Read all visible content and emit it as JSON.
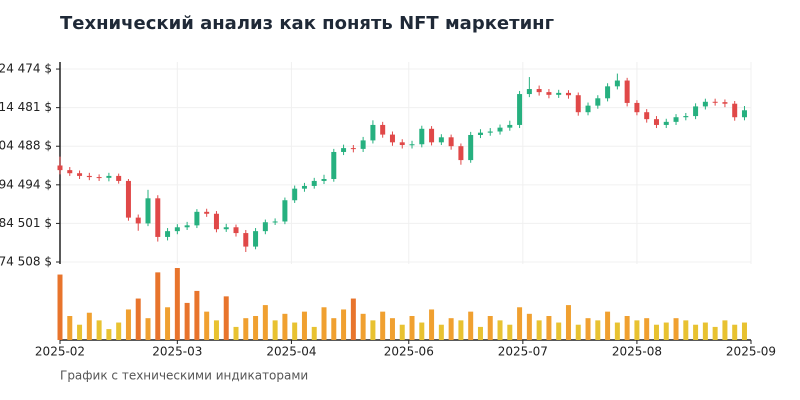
{
  "chart_data": {
    "type": "candlestick",
    "title": "Технический анализ как понять NFT маркетинг",
    "subtitle": "График с техническими индикаторами",
    "up_color": "#26b07f",
    "down_color": "#e04848",
    "grid": true,
    "x": [
      "2025-02-01",
      "2025-02-04",
      "2025-02-07",
      "2025-02-10",
      "2025-02-13",
      "2025-02-16",
      "2025-02-19",
      "2025-02-22",
      "2025-02-25",
      "2025-02-28",
      "2025-03-03",
      "2025-03-06",
      "2025-03-09",
      "2025-03-12",
      "2025-03-15",
      "2025-03-18",
      "2025-03-21",
      "2025-03-24",
      "2025-03-27",
      "2025-03-30",
      "2025-04-02",
      "2025-04-05",
      "2025-04-08",
      "2025-04-11",
      "2025-04-14",
      "2025-04-17",
      "2025-04-20",
      "2025-04-23",
      "2025-04-26",
      "2025-04-29",
      "2025-05-02",
      "2025-05-05",
      "2025-05-08",
      "2025-05-11",
      "2025-05-14",
      "2025-05-17",
      "2025-05-20",
      "2025-05-23",
      "2025-05-26",
      "2025-05-29",
      "2025-06-01",
      "2025-06-04",
      "2025-06-07",
      "2025-06-10",
      "2025-06-13",
      "2025-06-16",
      "2025-06-19",
      "2025-06-22",
      "2025-06-25",
      "2025-06-28",
      "2025-07-01",
      "2025-07-04",
      "2025-07-07",
      "2025-07-10",
      "2025-07-13",
      "2025-07-16",
      "2025-07-19",
      "2025-07-22",
      "2025-07-25",
      "2025-07-28",
      "2025-07-31",
      "2025-08-03",
      "2025-08-06",
      "2025-08-09",
      "2025-08-12",
      "2025-08-15",
      "2025-08-18",
      "2025-08-21",
      "2025-08-24",
      "2025-08-27",
      "2025-08-30"
    ],
    "open": [
      99500,
      98300,
      97500,
      96800,
      96500,
      96300,
      96800,
      95500,
      86000,
      84500,
      91000,
      81000,
      82500,
      83500,
      84000,
      87500,
      87000,
      83000,
      83500,
      82000,
      78500,
      82500,
      84800,
      85000,
      90500,
      93500,
      94200,
      95500,
      96000,
      103000,
      104000,
      103800,
      106000,
      110000,
      107500,
      105500,
      104800,
      105000,
      109000,
      105500,
      106800,
      104500,
      100900,
      107400,
      108000,
      108300,
      109300,
      110000,
      118000,
      119300,
      118500,
      117800,
      118300,
      117700,
      113300,
      115000,
      116900,
      120000,
      121500,
      115700,
      113300,
      111500,
      110000,
      110800,
      112000,
      112300,
      114800,
      116000,
      115900,
      115500,
      112000
    ],
    "high": [
      101800,
      99100,
      98200,
      97600,
      97200,
      97600,
      97400,
      96000,
      86800,
      93200,
      91800,
      83300,
      84300,
      84900,
      88200,
      88300,
      87700,
      84400,
      84200,
      82800,
      83300,
      85500,
      85800,
      91200,
      94300,
      95000,
      96300,
      97100,
      103800,
      104900,
      104800,
      106900,
      111200,
      110800,
      108300,
      106300,
      105900,
      109800,
      109700,
      107600,
      107500,
      105200,
      108200,
      108900,
      109200,
      110100,
      111100,
      118800,
      122400,
      120200,
      119300,
      119100,
      119000,
      118400,
      115800,
      117700,
      120800,
      123300,
      122200,
      116400,
      114100,
      112300,
      111600,
      112800,
      113100,
      115600,
      116800,
      116800,
      116600,
      116200,
      114900
    ],
    "low": [
      97200,
      96800,
      96000,
      95700,
      95500,
      95400,
      94800,
      85200,
      82600,
      83800,
      79800,
      80100,
      81700,
      82800,
      83300,
      86200,
      82200,
      82300,
      81100,
      77100,
      77800,
      81700,
      84100,
      84300,
      89800,
      92700,
      93500,
      94700,
      95300,
      102200,
      102900,
      103000,
      105200,
      106700,
      104600,
      103900,
      103900,
      104200,
      104700,
      104800,
      103600,
      99700,
      100200,
      106600,
      107200,
      107500,
      108500,
      109200,
      117200,
      117600,
      116900,
      117000,
      116800,
      112400,
      112500,
      114200,
      116100,
      119200,
      114800,
      112500,
      110600,
      109200,
      109200,
      110000,
      111200,
      111500,
      114000,
      115000,
      114600,
      111100,
      111200
    ],
    "close": [
      98300,
      97500,
      96800,
      96500,
      96300,
      96800,
      95500,
      86000,
      84500,
      91000,
      81000,
      82500,
      83500,
      84000,
      87500,
      87000,
      83000,
      83500,
      82000,
      78500,
      82500,
      84800,
      85000,
      90500,
      93500,
      94200,
      95500,
      96000,
      103000,
      104000,
      103800,
      106000,
      110000,
      107500,
      105500,
      104800,
      105000,
      109000,
      105500,
      106800,
      104500,
      100900,
      107400,
      108000,
      108300,
      109300,
      110000,
      118000,
      119300,
      118500,
      117800,
      118300,
      117700,
      113300,
      115000,
      116900,
      120000,
      121500,
      115700,
      113300,
      111500,
      110000,
      110800,
      112000,
      112300,
      114800,
      116000,
      115900,
      115500,
      112000,
      113800
    ],
    "volume": [
      60,
      22,
      14,
      25,
      18,
      10,
      16,
      28,
      38,
      20,
      62,
      30,
      66,
      34,
      45,
      26,
      18,
      40,
      12,
      20,
      22,
      32,
      18,
      24,
      16,
      26,
      12,
      30,
      20,
      28,
      38,
      24,
      18,
      26,
      20,
      14,
      22,
      16,
      28,
      14,
      20,
      18,
      26,
      12,
      22,
      18,
      14,
      30,
      24,
      18,
      22,
      16,
      32,
      14,
      20,
      18,
      26,
      16,
      22,
      18,
      20,
      14,
      16,
      20,
      18,
      14,
      16,
      12,
      18,
      14,
      16
    ],
    "ylim": [
      73990,
      126300
    ],
    "yticks": [
      {
        "value": 74508,
        "label": "74 508 $"
      },
      {
        "value": 84501,
        "label": "84 501 $"
      },
      {
        "value": 94494,
        "label": "94 494 $"
      },
      {
        "value": 104488,
        "label": "104 488 $"
      },
      {
        "value": 114481,
        "label": "114 481 $"
      },
      {
        "value": 124474,
        "label": "124 474 $"
      }
    ],
    "xlim": [
      "2025-02-01",
      "2025-09-01"
    ],
    "xticks": [
      {
        "value": "2025-02-01",
        "label": "2025-02"
      },
      {
        "value": "2025-03-09",
        "label": "2025-03"
      },
      {
        "value": "2025-04-13",
        "label": "2025-04"
      },
      {
        "value": "2025-05-19",
        "label": "2025-06"
      },
      {
        "value": "2025-06-23",
        "label": "2025-07"
      },
      {
        "value": "2025-07-28",
        "label": "2025-08"
      },
      {
        "value": "2025-09-01",
        "label": "2025-09"
      }
    ]
  }
}
